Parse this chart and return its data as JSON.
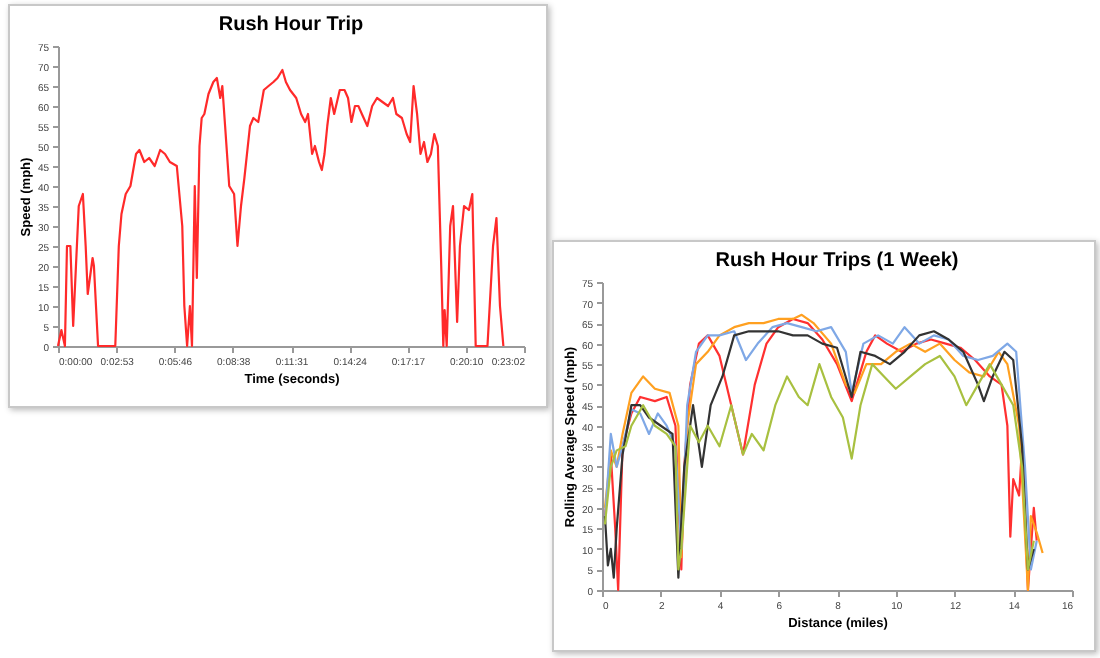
{
  "chart_data": [
    {
      "type": "line",
      "title": "Rush Hour Trip",
      "xlabel": "Time (seconds)",
      "ylabel": "Speed (mph)",
      "xlim": [
        0,
        0.384
      ],
      "ylim": [
        0,
        75
      ],
      "xticks": [
        {
          "value": 0,
          "label": "0:00:00"
        },
        {
          "value": 0.048,
          "label": "0:02:53"
        },
        {
          "value": 0.096,
          "label": "0:05:46"
        },
        {
          "value": 0.144,
          "label": "0:08:38"
        },
        {
          "value": 0.192,
          "label": "0:11:31"
        },
        {
          "value": 0.24,
          "label": "0:14:24"
        },
        {
          "value": 0.288,
          "label": "0:17:17"
        },
        {
          "value": 0.336,
          "label": "0:20:10"
        },
        {
          "value": 0.384,
          "label": "0:23:02"
        }
      ],
      "yticks": [
        0,
        5,
        10,
        15,
        20,
        25,
        30,
        35,
        40,
        45,
        50,
        55,
        60,
        65,
        70,
        75
      ],
      "grid": false,
      "x": [
        0,
        0.0028,
        0.0057,
        0.0074,
        0.0102,
        0.0125,
        0.0148,
        0.0171,
        0.0205,
        0.0228,
        0.0245,
        0.0285,
        0.0296,
        0.033,
        0.0444,
        0.0472,
        0.0501,
        0.0523,
        0.0558,
        0.0597,
        0.0643,
        0.0671,
        0.0711,
        0.0751,
        0.0797,
        0.0842,
        0.0882,
        0.0922,
        0.0979,
        0.1024,
        0.1041,
        0.1064,
        0.1087,
        0.1104,
        0.1127,
        0.1144,
        0.1166,
        0.1184,
        0.1206,
        0.124,
        0.128,
        0.1309,
        0.1337,
        0.1354,
        0.1377,
        0.1411,
        0.1451,
        0.1479,
        0.1508,
        0.1536,
        0.1582,
        0.161,
        0.165,
        0.1696,
        0.1735,
        0.1775,
        0.1809,
        0.1849,
        0.1878,
        0.1912,
        0.1963,
        0.2003,
        0.2037,
        0.206,
        0.2094,
        0.2117,
        0.2151,
        0.2174,
        0.2196,
        0.2219,
        0.2248,
        0.2276,
        0.2322,
        0.2361,
        0.239,
        0.2418,
        0.2447,
        0.2475,
        0.2504,
        0.2549,
        0.2589,
        0.2629,
        0.2674,
        0.272,
        0.276,
        0.2788,
        0.2834,
        0.2873,
        0.2902,
        0.293,
        0.2959,
        0.2987,
        0.3016,
        0.3044,
        0.3073,
        0.3101,
        0.313,
        0.3158,
        0.3175,
        0.3186,
        0.3203,
        0.3232,
        0.3255,
        0.3289,
        0.3312,
        0.3346,
        0.3386,
        0.3414,
        0.3442,
        0.3539,
        0.3585,
        0.3613,
        0.3642,
        0.367
      ],
      "series": [
        {
          "color": "#ff2a2a",
          "values": [
            0,
            4,
            0,
            25,
            25,
            5,
            20,
            35,
            38,
            25,
            13,
            22,
            20,
            0,
            0,
            0,
            25,
            33,
            38,
            40,
            48,
            49,
            46,
            47,
            45,
            49,
            48,
            46,
            45,
            30,
            10,
            0,
            10,
            0,
            40,
            17,
            50,
            57,
            58,
            63,
            66,
            67,
            62,
            65,
            55,
            40,
            38,
            25,
            35,
            42,
            55,
            57,
            56,
            64,
            65,
            66,
            67,
            69,
            66,
            64,
            62,
            58,
            56,
            58,
            48,
            50,
            46,
            44,
            48,
            55,
            62,
            58,
            64,
            64,
            62,
            56,
            60,
            60,
            58,
            55,
            60,
            62,
            61,
            60,
            62,
            58,
            57,
            53,
            51,
            65,
            58,
            48,
            51,
            46,
            48,
            53,
            50,
            20,
            0,
            9,
            0,
            30,
            35,
            6,
            25,
            35,
            34,
            38,
            0,
            0,
            25,
            32,
            10,
            0
          ]
        }
      ]
    },
    {
      "type": "line",
      "title": "Rush Hour Trips (1 Week)",
      "xlabel": "Distance (miles)",
      "ylabel": "Rolling Average Speed (mph)",
      "xlim": [
        0,
        16
      ],
      "ylim": [
        0,
        75
      ],
      "xticks": [
        0,
        2,
        4,
        6,
        8,
        10,
        12,
        14,
        16
      ],
      "yticks": [
        0,
        5,
        10,
        15,
        20,
        25,
        30,
        35,
        40,
        45,
        50,
        55,
        60,
        65,
        70,
        75
      ],
      "grid": false,
      "series": [
        {
          "color": "#ff3030",
          "x": [
            0.1,
            0.3,
            0.45,
            0.55,
            0.7,
            1.0,
            1.3,
            1.8,
            2.2,
            2.5,
            2.7,
            2.8,
            3.0,
            3.3,
            3.6,
            4.0,
            4.4,
            4.8,
            5.2,
            5.6,
            6.0,
            6.5,
            7.0,
            7.5,
            8.0,
            8.5,
            9.0,
            9.3,
            9.7,
            10.2,
            10.7,
            11.2,
            11.7,
            12.2,
            12.7,
            13.2,
            13.6,
            13.8,
            13.9,
            14.0,
            14.2,
            14.3,
            14.5,
            14.7,
            14.8
          ],
          "values": [
            18,
            33,
            15,
            0,
            35,
            43,
            47,
            46,
            47,
            40,
            5,
            30,
            50,
            60,
            62,
            57,
            45,
            33,
            50,
            60,
            64,
            66,
            65,
            61,
            55,
            46,
            58,
            62,
            60,
            58,
            60,
            61,
            60,
            59,
            56,
            52,
            50,
            40,
            13,
            27,
            23,
            35,
            0,
            20,
            12
          ]
        },
        {
          "color": "#ffa020",
          "x": [
            0.1,
            0.3,
            0.5,
            0.7,
            1.0,
            1.4,
            1.8,
            2.3,
            2.6,
            2.7,
            2.9,
            3.2,
            3.6,
            4.0,
            4.5,
            5.0,
            5.5,
            6.0,
            6.5,
            6.8,
            7.2,
            7.8,
            8.3,
            8.6,
            9.0,
            9.5,
            10.0,
            10.5,
            11.0,
            11.5,
            12.0,
            12.5,
            13.0,
            13.5,
            13.8,
            14.2,
            14.5,
            14.6,
            14.8,
            15.0
          ],
          "values": [
            20,
            34,
            30,
            38,
            48,
            52,
            49,
            48,
            40,
            8,
            40,
            55,
            58,
            62,
            64,
            65,
            65,
            66,
            66,
            67,
            65,
            60,
            50,
            48,
            55,
            55,
            58,
            60,
            58,
            60,
            56,
            53,
            52,
            58,
            55,
            40,
            0,
            18,
            14,
            9
          ]
        },
        {
          "color": "#7fa8e6",
          "x": [
            0.1,
            0.3,
            0.5,
            0.7,
            1.0,
            1.3,
            1.6,
            1.9,
            2.2,
            2.5,
            2.7,
            2.9,
            3.2,
            3.6,
            4.0,
            4.5,
            4.9,
            5.3,
            5.8,
            6.3,
            6.8,
            7.3,
            7.8,
            8.3,
            8.5,
            8.9,
            9.4,
            9.9,
            10.3,
            10.8,
            11.3,
            11.8,
            12.3,
            12.8,
            13.3,
            13.8,
            14.1,
            14.4,
            14.6,
            14.8
          ],
          "values": [
            17,
            38,
            30,
            35,
            44,
            43,
            38,
            43,
            40,
            35,
            10,
            45,
            58,
            62,
            62,
            63,
            56,
            60,
            64,
            65,
            64,
            63,
            64,
            58,
            48,
            60,
            62,
            60,
            64,
            60,
            62,
            61,
            57,
            56,
            57,
            60,
            58,
            30,
            5,
            12
          ]
        },
        {
          "color": "#333333",
          "x": [
            0.1,
            0.2,
            0.3,
            0.4,
            0.5,
            0.7,
            1.0,
            1.3,
            1.6,
            2.0,
            2.4,
            2.6,
            2.8,
            3.1,
            3.4,
            3.7,
            4.1,
            4.5,
            5.0,
            5.5,
            6.0,
            6.5,
            7.0,
            7.5,
            8.0,
            8.5,
            8.8,
            9.3,
            9.8,
            10.3,
            10.8,
            11.3,
            11.8,
            12.3,
            12.8,
            13.0,
            13.3,
            13.7,
            14.0,
            14.3,
            14.5,
            14.7
          ],
          "values": [
            18,
            6,
            10,
            3,
            15,
            33,
            45,
            45,
            42,
            40,
            38,
            3,
            30,
            45,
            30,
            45,
            52,
            62,
            63,
            63,
            63,
            62,
            62,
            60,
            59,
            47,
            58,
            57,
            55,
            58,
            62,
            63,
            61,
            58,
            50,
            46,
            52,
            58,
            56,
            35,
            5,
            10
          ]
        },
        {
          "color": "#a8c040",
          "x": [
            0.1,
            0.3,
            0.5,
            0.8,
            1.0,
            1.4,
            1.8,
            2.2,
            2.5,
            2.6,
            2.7,
            3.0,
            3.3,
            3.6,
            4.0,
            4.4,
            4.8,
            5.1,
            5.5,
            5.9,
            6.3,
            6.7,
            7.0,
            7.4,
            7.8,
            8.2,
            8.5,
            8.8,
            9.2,
            9.6,
            10.0,
            10.5,
            11.0,
            11.5,
            12.0,
            12.4,
            12.8,
            13.2,
            13.6,
            14.0,
            14.3,
            14.5,
            14.7
          ],
          "values": [
            16,
            30,
            34,
            35,
            40,
            45,
            40,
            38,
            35,
            5,
            10,
            40,
            36,
            40,
            35,
            45,
            33,
            38,
            34,
            45,
            52,
            47,
            45,
            55,
            47,
            42,
            32,
            45,
            55,
            52,
            49,
            52,
            55,
            57,
            52,
            45,
            50,
            55,
            50,
            45,
            30,
            5,
            12
          ]
        }
      ]
    }
  ]
}
